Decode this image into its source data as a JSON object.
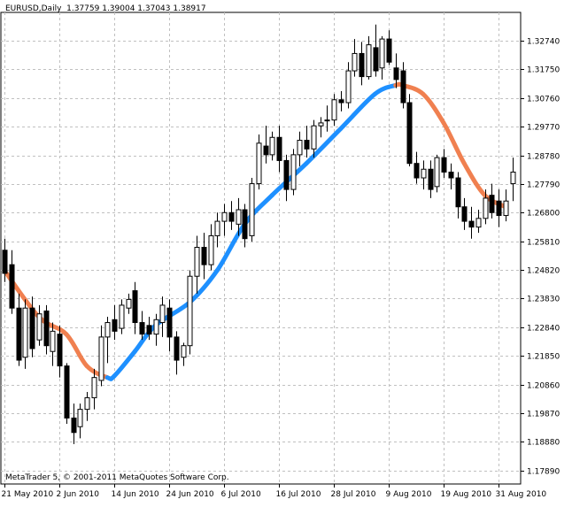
{
  "header": {
    "symbol": "EURUSD,Daily",
    "ohlc": "1.37759 1.39004 1.37043 1.38917"
  },
  "footer": {
    "copyright": "MetaTrader 5, © 2001-2011 MetaQuotes Software Corp."
  },
  "colors": {
    "background": "#ffffff",
    "grid": "#c0c0c0",
    "bull_candle": "#ffffff",
    "bear_candle": "#000000",
    "ma_up": "#1e90ff",
    "ma_down": "#f08050"
  },
  "chart_data": {
    "type": "candlestick",
    "title": "EURUSD,Daily",
    "ylim": [
      1.1742,
      1.3372
    ],
    "y_ticks": [
      1.3274,
      1.3175,
      1.3076,
      1.2977,
      1.2878,
      1.2779,
      1.268,
      1.2581,
      1.2482,
      1.2383,
      1.2284,
      1.2185,
      1.2086,
      1.1987,
      1.1888,
      1.1789
    ],
    "y_tick_labels": [
      "1.32740",
      "1.31750",
      "1.30760",
      "1.29770",
      "1.28780",
      "1.27790",
      "1.26800",
      "1.25810",
      "1.24820",
      "1.23830",
      "1.22840",
      "1.21850",
      "1.20860",
      "1.19870",
      "1.18880",
      "1.17890"
    ],
    "x_tick_labels": [
      {
        "label": "21 May 2010",
        "bar": 0
      },
      {
        "label": "2 Jun 2010",
        "bar": 8
      },
      {
        "label": "14 Jun 2010",
        "bar": 16
      },
      {
        "label": "24 Jun 2010",
        "bar": 24
      },
      {
        "label": "6 Jul 2010",
        "bar": 32
      },
      {
        "label": "16 Jul 2010",
        "bar": 40
      },
      {
        "label": "28 Jul 2010",
        "bar": 48
      },
      {
        "label": "9 Aug 2010",
        "bar": 56
      },
      {
        "label": "19 Aug 2010",
        "bar": 64
      },
      {
        "label": "31 Aug 2010",
        "bar": 72
      }
    ],
    "grid": true,
    "candles": [
      {
        "o": 1.255,
        "h": 1.259,
        "l": 1.244,
        "c": 1.247
      },
      {
        "o": 1.25,
        "h": 1.255,
        "l": 1.233,
        "c": 1.235
      },
      {
        "o": 1.235,
        "h": 1.24,
        "l": 1.215,
        "c": 1.217
      },
      {
        "o": 1.218,
        "h": 1.238,
        "l": 1.214,
        "c": 1.235
      },
      {
        "o": 1.235,
        "h": 1.239,
        "l": 1.218,
        "c": 1.221
      },
      {
        "o": 1.224,
        "h": 1.236,
        "l": 1.222,
        "c": 1.233
      },
      {
        "o": 1.234,
        "h": 1.236,
        "l": 1.219,
        "c": 1.222
      },
      {
        "o": 1.22,
        "h": 1.23,
        "l": 1.215,
        "c": 1.227
      },
      {
        "o": 1.226,
        "h": 1.229,
        "l": 1.211,
        "c": 1.215
      },
      {
        "o": 1.215,
        "h": 1.216,
        "l": 1.195,
        "c": 1.197
      },
      {
        "o": 1.197,
        "h": 1.202,
        "l": 1.188,
        "c": 1.192
      },
      {
        "o": 1.194,
        "h": 1.202,
        "l": 1.19,
        "c": 1.2
      },
      {
        "o": 1.2,
        "h": 1.206,
        "l": 1.196,
        "c": 1.204
      },
      {
        "o": 1.204,
        "h": 1.214,
        "l": 1.2,
        "c": 1.211
      },
      {
        "o": 1.21,
        "h": 1.229,
        "l": 1.208,
        "c": 1.225
      },
      {
        "o": 1.225,
        "h": 1.232,
        "l": 1.216,
        "c": 1.23
      },
      {
        "o": 1.231,
        "h": 1.236,
        "l": 1.224,
        "c": 1.227
      },
      {
        "o": 1.228,
        "h": 1.238,
        "l": 1.226,
        "c": 1.236
      },
      {
        "o": 1.235,
        "h": 1.24,
        "l": 1.233,
        "c": 1.238
      },
      {
        "o": 1.241,
        "h": 1.244,
        "l": 1.226,
        "c": 1.23
      },
      {
        "o": 1.23,
        "h": 1.234,
        "l": 1.224,
        "c": 1.226
      },
      {
        "o": 1.229,
        "h": 1.232,
        "l": 1.224,
        "c": 1.226
      },
      {
        "o": 1.226,
        "h": 1.233,
        "l": 1.222,
        "c": 1.231
      },
      {
        "o": 1.23,
        "h": 1.239,
        "l": 1.225,
        "c": 1.236
      },
      {
        "o": 1.235,
        "h": 1.238,
        "l": 1.22,
        "c": 1.225
      },
      {
        "o": 1.225,
        "h": 1.227,
        "l": 1.212,
        "c": 1.217
      },
      {
        "o": 1.218,
        "h": 1.223,
        "l": 1.215,
        "c": 1.222
      },
      {
        "o": 1.222,
        "h": 1.248,
        "l": 1.219,
        "c": 1.246
      },
      {
        "o": 1.246,
        "h": 1.26,
        "l": 1.24,
        "c": 1.256
      },
      {
        "o": 1.256,
        "h": 1.261,
        "l": 1.245,
        "c": 1.25
      },
      {
        "o": 1.25,
        "h": 1.264,
        "l": 1.248,
        "c": 1.26
      },
      {
        "o": 1.26,
        "h": 1.268,
        "l": 1.256,
        "c": 1.265
      },
      {
        "o": 1.265,
        "h": 1.271,
        "l": 1.26,
        "c": 1.268
      },
      {
        "o": 1.268,
        "h": 1.272,
        "l": 1.262,
        "c": 1.265
      },
      {
        "o": 1.264,
        "h": 1.273,
        "l": 1.26,
        "c": 1.269
      },
      {
        "o": 1.269,
        "h": 1.271,
        "l": 1.256,
        "c": 1.259
      },
      {
        "o": 1.26,
        "h": 1.28,
        "l": 1.258,
        "c": 1.278
      },
      {
        "o": 1.278,
        "h": 1.295,
        "l": 1.276,
        "c": 1.292
      },
      {
        "o": 1.291,
        "h": 1.298,
        "l": 1.285,
        "c": 1.288
      },
      {
        "o": 1.288,
        "h": 1.296,
        "l": 1.286,
        "c": 1.294
      },
      {
        "o": 1.294,
        "h": 1.298,
        "l": 1.282,
        "c": 1.286
      },
      {
        "o": 1.286,
        "h": 1.288,
        "l": 1.272,
        "c": 1.276
      },
      {
        "o": 1.276,
        "h": 1.29,
        "l": 1.274,
        "c": 1.288
      },
      {
        "o": 1.288,
        "h": 1.296,
        "l": 1.284,
        "c": 1.293
      },
      {
        "o": 1.293,
        "h": 1.298,
        "l": 1.287,
        "c": 1.29
      },
      {
        "o": 1.29,
        "h": 1.3,
        "l": 1.287,
        "c": 1.298
      },
      {
        "o": 1.298,
        "h": 1.301,
        "l": 1.294,
        "c": 1.299
      },
      {
        "o": 1.3,
        "h": 1.305,
        "l": 1.296,
        "c": 1.3
      },
      {
        "o": 1.3,
        "h": 1.309,
        "l": 1.298,
        "c": 1.307
      },
      {
        "o": 1.307,
        "h": 1.31,
        "l": 1.303,
        "c": 1.306
      },
      {
        "o": 1.306,
        "h": 1.32,
        "l": 1.304,
        "c": 1.317
      },
      {
        "o": 1.317,
        "h": 1.328,
        "l": 1.315,
        "c": 1.323
      },
      {
        "o": 1.323,
        "h": 1.327,
        "l": 1.312,
        "c": 1.315
      },
      {
        "o": 1.315,
        "h": 1.329,
        "l": 1.314,
        "c": 1.326
      },
      {
        "o": 1.325,
        "h": 1.333,
        "l": 1.315,
        "c": 1.317
      },
      {
        "o": 1.318,
        "h": 1.329,
        "l": 1.314,
        "c": 1.328
      },
      {
        "o": 1.328,
        "h": 1.331,
        "l": 1.319,
        "c": 1.32
      },
      {
        "o": 1.318,
        "h": 1.323,
        "l": 1.311,
        "c": 1.314
      },
      {
        "o": 1.317,
        "h": 1.32,
        "l": 1.304,
        "c": 1.306
      },
      {
        "o": 1.306,
        "h": 1.309,
        "l": 1.284,
        "c": 1.285
      },
      {
        "o": 1.285,
        "h": 1.289,
        "l": 1.278,
        "c": 1.28
      },
      {
        "o": 1.28,
        "h": 1.286,
        "l": 1.276,
        "c": 1.283
      },
      {
        "o": 1.283,
        "h": 1.286,
        "l": 1.273,
        "c": 1.276
      },
      {
        "o": 1.277,
        "h": 1.288,
        "l": 1.275,
        "c": 1.287
      },
      {
        "o": 1.287,
        "h": 1.29,
        "l": 1.28,
        "c": 1.282
      },
      {
        "o": 1.282,
        "h": 1.285,
        "l": 1.276,
        "c": 1.28
      },
      {
        "o": 1.28,
        "h": 1.282,
        "l": 1.266,
        "c": 1.27
      },
      {
        "o": 1.27,
        "h": 1.273,
        "l": 1.262,
        "c": 1.265
      },
      {
        "o": 1.265,
        "h": 1.27,
        "l": 1.259,
        "c": 1.263
      },
      {
        "o": 1.263,
        "h": 1.269,
        "l": 1.261,
        "c": 1.266
      },
      {
        "o": 1.266,
        "h": 1.276,
        "l": 1.264,
        "c": 1.273
      },
      {
        "o": 1.274,
        "h": 1.278,
        "l": 1.266,
        "c": 1.268
      },
      {
        "o": 1.272,
        "h": 1.276,
        "l": 1.263,
        "c": 1.267
      },
      {
        "o": 1.267,
        "h": 1.276,
        "l": 1.265,
        "c": 1.272
      },
      {
        "o": 1.278,
        "h": 1.287,
        "l": 1.272,
        "c": 1.282
      }
    ],
    "ma_points": [
      {
        "bar": 0,
        "v": 1.248,
        "trend": "down"
      },
      {
        "bar": 5,
        "v": 1.232,
        "trend": "down"
      },
      {
        "bar": 9,
        "v": 1.226,
        "trend": "down"
      },
      {
        "bar": 12,
        "v": 1.215,
        "trend": "down"
      },
      {
        "bar": 15,
        "v": 1.211,
        "trend": "down"
      },
      {
        "bar": 16,
        "v": 1.2115,
        "trend": "up"
      },
      {
        "bar": 19,
        "v": 1.22,
        "trend": "up"
      },
      {
        "bar": 22,
        "v": 1.229,
        "trend": "up"
      },
      {
        "bar": 27,
        "v": 1.237,
        "trend": "up"
      },
      {
        "bar": 31,
        "v": 1.248,
        "trend": "up"
      },
      {
        "bar": 35,
        "v": 1.264,
        "trend": "up"
      },
      {
        "bar": 39,
        "v": 1.274,
        "trend": "up"
      },
      {
        "bar": 44,
        "v": 1.285,
        "trend": "up"
      },
      {
        "bar": 49,
        "v": 1.297,
        "trend": "up"
      },
      {
        "bar": 54,
        "v": 1.309,
        "trend": "up"
      },
      {
        "bar": 57,
        "v": 1.312,
        "trend": "up"
      },
      {
        "bar": 58,
        "v": 1.312,
        "trend": "down"
      },
      {
        "bar": 61,
        "v": 1.309,
        "trend": "down"
      },
      {
        "bar": 64,
        "v": 1.299,
        "trend": "down"
      },
      {
        "bar": 67,
        "v": 1.285,
        "trend": "down"
      },
      {
        "bar": 70,
        "v": 1.274,
        "trend": "down"
      },
      {
        "bar": 73,
        "v": 1.27,
        "trend": "down"
      }
    ]
  }
}
